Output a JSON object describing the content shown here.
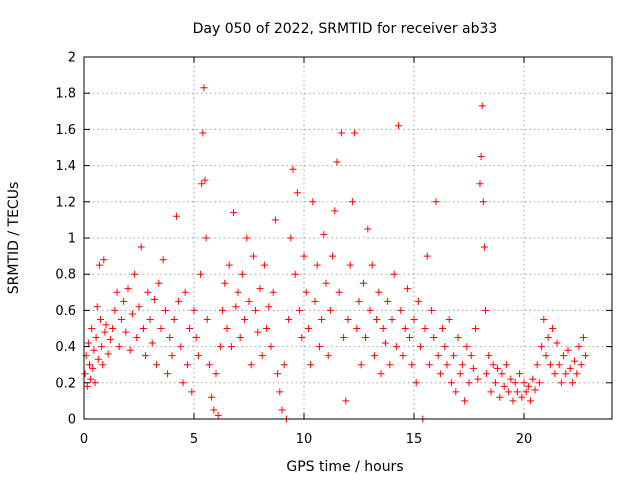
{
  "chart_data": {
    "type": "scatter",
    "title": "Day 050 of 2022, SRMTID for receiver ab33",
    "xlabel": "GPS time / hours",
    "ylabel": "SRMTID / TECUs",
    "xlim": [
      0,
      24
    ],
    "ylim": [
      0,
      2
    ],
    "xticks": [
      0,
      5,
      10,
      15,
      20
    ],
    "xtick_labels": [
      "0",
      "5",
      "10",
      "15",
      "20"
    ],
    "yticks": [
      0,
      0.2,
      0.4,
      0.6,
      0.8,
      1,
      1.2,
      1.4,
      1.6,
      1.8,
      2
    ],
    "ytick_labels": [
      "0",
      "0.2",
      "0.4",
      "0.6",
      "0.8",
      "1",
      "1.2",
      "1.4",
      "1.6",
      "1.8",
      "2"
    ],
    "grid": true,
    "marker": "+",
    "series_color": "#ff0000",
    "series": [
      {
        "name": "SRMTID",
        "points": [
          [
            0.05,
            0.25
          ],
          [
            0.1,
            0.35
          ],
          [
            0.15,
            0.18
          ],
          [
            0.2,
            0.42
          ],
          [
            0.25,
            0.3
          ],
          [
            0.3,
            0.22
          ],
          [
            0.35,
            0.5
          ],
          [
            0.4,
            0.28
          ],
          [
            0.45,
            0.38
          ],
          [
            0.5,
            0.2
          ],
          [
            0.55,
            0.45
          ],
          [
            0.6,
            0.62
          ],
          [
            0.65,
            0.33
          ],
          [
            0.7,
            0.85
          ],
          [
            0.75,
            0.55
          ],
          [
            0.8,
            0.4
          ],
          [
            0.85,
            0.3
          ],
          [
            0.9,
            0.88
          ],
          [
            0.95,
            0.48
          ],
          [
            1.0,
            0.52
          ],
          [
            1.1,
            0.36
          ],
          [
            1.2,
            0.44
          ],
          [
            1.3,
            0.5
          ],
          [
            1.4,
            0.6
          ],
          [
            1.5,
            0.7
          ],
          [
            1.6,
            0.4
          ],
          [
            1.7,
            0.55
          ],
          [
            1.8,
            0.65
          ],
          [
            1.9,
            0.48
          ],
          [
            2.0,
            0.72
          ],
          [
            2.1,
            0.38
          ],
          [
            2.2,
            0.58
          ],
          [
            2.3,
            0.8
          ],
          [
            2.4,
            0.45
          ],
          [
            2.5,
            0.62
          ],
          [
            2.6,
            0.95
          ],
          [
            2.7,
            0.5
          ],
          [
            2.8,
            0.35
          ],
          [
            2.9,
            0.7
          ],
          [
            3.0,
            0.55
          ],
          [
            3.1,
            0.42
          ],
          [
            3.2,
            0.66
          ],
          [
            3.3,
            0.3
          ],
          [
            3.4,
            0.75
          ],
          [
            3.5,
            0.5
          ],
          [
            3.6,
            0.88
          ],
          [
            3.7,
            0.6
          ],
          [
            3.8,
            0.25
          ],
          [
            3.9,
            0.45
          ],
          [
            4.0,
            0.35
          ],
          [
            4.1,
            0.55
          ],
          [
            4.2,
            1.12
          ],
          [
            4.3,
            0.65
          ],
          [
            4.4,
            0.4
          ],
          [
            4.5,
            0.2
          ],
          [
            4.6,
            0.7
          ],
          [
            4.7,
            0.3
          ],
          [
            4.8,
            0.5
          ],
          [
            4.9,
            0.15
          ],
          [
            5.0,
            0.6
          ],
          [
            5.1,
            0.45
          ],
          [
            5.2,
            0.35
          ],
          [
            5.3,
            0.8
          ],
          [
            5.35,
            1.3
          ],
          [
            5.4,
            1.58
          ],
          [
            5.45,
            1.83
          ],
          [
            5.5,
            1.32
          ],
          [
            5.55,
            1.0
          ],
          [
            5.6,
            0.55
          ],
          [
            5.7,
            0.3
          ],
          [
            5.8,
            0.12
          ],
          [
            5.9,
            0.05
          ],
          [
            6.0,
            0.25
          ],
          [
            6.1,
            0.02
          ],
          [
            6.2,
            0.4
          ],
          [
            6.3,
            0.6
          ],
          [
            6.4,
            0.75
          ],
          [
            6.5,
            0.5
          ],
          [
            6.6,
            0.85
          ],
          [
            6.7,
            0.4
          ],
          [
            6.8,
            1.14
          ],
          [
            6.9,
            0.62
          ],
          [
            7.0,
            0.7
          ],
          [
            7.1,
            0.45
          ],
          [
            7.2,
            0.8
          ],
          [
            7.3,
            0.55
          ],
          [
            7.4,
            1.0
          ],
          [
            7.5,
            0.65
          ],
          [
            7.6,
            0.3
          ],
          [
            7.7,
            0.9
          ],
          [
            7.8,
            0.6
          ],
          [
            7.9,
            0.48
          ],
          [
            8.0,
            0.72
          ],
          [
            8.1,
            0.35
          ],
          [
            8.2,
            0.85
          ],
          [
            8.3,
            0.5
          ],
          [
            8.4,
            0.62
          ],
          [
            8.5,
            0.4
          ],
          [
            8.6,
            0.7
          ],
          [
            8.7,
            1.1
          ],
          [
            8.8,
            0.25
          ],
          [
            8.9,
            0.15
          ],
          [
            9.0,
            0.05
          ],
          [
            9.1,
            0.3
          ],
          [
            9.2,
            0.0
          ],
          [
            9.3,
            0.55
          ],
          [
            9.4,
            1.0
          ],
          [
            9.5,
            1.38
          ],
          [
            9.6,
            0.8
          ],
          [
            9.7,
            1.25
          ],
          [
            9.8,
            0.6
          ],
          [
            9.9,
            0.45
          ],
          [
            10.0,
            0.9
          ],
          [
            10.1,
            0.7
          ],
          [
            10.2,
            0.5
          ],
          [
            10.3,
            0.3
          ],
          [
            10.4,
            1.2
          ],
          [
            10.5,
            0.65
          ],
          [
            10.6,
            0.85
          ],
          [
            10.7,
            0.4
          ],
          [
            10.8,
            0.55
          ],
          [
            10.9,
            1.02
          ],
          [
            11.0,
            0.75
          ],
          [
            11.1,
            0.35
          ],
          [
            11.2,
            0.6
          ],
          [
            11.3,
            0.9
          ],
          [
            11.4,
            1.15
          ],
          [
            11.5,
            1.42
          ],
          [
            11.6,
            0.7
          ],
          [
            11.7,
            1.58
          ],
          [
            11.8,
            0.45
          ],
          [
            11.9,
            0.1
          ],
          [
            12.0,
            0.55
          ],
          [
            12.1,
            0.85
          ],
          [
            12.2,
            1.2
          ],
          [
            12.3,
            1.58
          ],
          [
            12.4,
            0.5
          ],
          [
            12.5,
            0.65
          ],
          [
            12.6,
            0.3
          ],
          [
            12.7,
            0.75
          ],
          [
            12.8,
            0.45
          ],
          [
            12.9,
            1.05
          ],
          [
            13.0,
            0.6
          ],
          [
            13.1,
            0.85
          ],
          [
            13.2,
            0.35
          ],
          [
            13.3,
            0.55
          ],
          [
            13.4,
            0.7
          ],
          [
            13.5,
            0.25
          ],
          [
            13.6,
            0.5
          ],
          [
            13.7,
            0.42
          ],
          [
            13.8,
            0.65
          ],
          [
            13.9,
            0.3
          ],
          [
            14.0,
            0.55
          ],
          [
            14.1,
            0.8
          ],
          [
            14.2,
            0.4
          ],
          [
            14.3,
            1.62
          ],
          [
            14.4,
            0.6
          ],
          [
            14.5,
            0.35
          ],
          [
            14.6,
            0.5
          ],
          [
            14.7,
            0.72
          ],
          [
            14.8,
            0.45
          ],
          [
            14.9,
            0.3
          ],
          [
            15.0,
            0.55
          ],
          [
            15.1,
            0.2
          ],
          [
            15.2,
            0.65
          ],
          [
            15.3,
            0.4
          ],
          [
            15.4,
            0.0
          ],
          [
            15.5,
            0.5
          ],
          [
            15.6,
            0.9
          ],
          [
            15.7,
            0.3
          ],
          [
            15.8,
            0.6
          ],
          [
            15.9,
            0.45
          ],
          [
            16.0,
            1.2
          ],
          [
            16.1,
            0.35
          ],
          [
            16.2,
            0.25
          ],
          [
            16.3,
            0.5
          ],
          [
            16.4,
            0.4
          ],
          [
            16.5,
            0.3
          ],
          [
            16.6,
            0.55
          ],
          [
            16.7,
            0.2
          ],
          [
            16.8,
            0.35
          ],
          [
            16.9,
            0.15
          ],
          [
            17.0,
            0.45
          ],
          [
            17.1,
            0.25
          ],
          [
            17.2,
            0.3
          ],
          [
            17.3,
            0.1
          ],
          [
            17.4,
            0.4
          ],
          [
            17.5,
            0.2
          ],
          [
            17.6,
            0.35
          ],
          [
            17.7,
            0.28
          ],
          [
            17.8,
            0.5
          ],
          [
            17.9,
            0.22
          ],
          [
            18.0,
            1.3
          ],
          [
            18.05,
            1.45
          ],
          [
            18.1,
            1.73
          ],
          [
            18.15,
            1.2
          ],
          [
            18.2,
            0.95
          ],
          [
            18.25,
            0.6
          ],
          [
            18.3,
            0.25
          ],
          [
            18.4,
            0.35
          ],
          [
            18.5,
            0.15
          ],
          [
            18.6,
            0.3
          ],
          [
            18.7,
            0.2
          ],
          [
            18.8,
            0.28
          ],
          [
            18.9,
            0.12
          ],
          [
            19.0,
            0.25
          ],
          [
            19.1,
            0.18
          ],
          [
            19.2,
            0.3
          ],
          [
            19.3,
            0.15
          ],
          [
            19.4,
            0.22
          ],
          [
            19.5,
            0.1
          ],
          [
            19.6,
            0.2
          ],
          [
            19.7,
            0.15
          ],
          [
            19.8,
            0.25
          ],
          [
            19.9,
            0.12
          ],
          [
            20.0,
            0.2
          ],
          [
            20.1,
            0.15
          ],
          [
            20.2,
            0.18
          ],
          [
            20.3,
            0.1
          ],
          [
            20.4,
            0.22
          ],
          [
            20.5,
            0.16
          ],
          [
            20.6,
            0.3
          ],
          [
            20.7,
            0.2
          ],
          [
            20.8,
            0.4
          ],
          [
            20.9,
            0.55
          ],
          [
            21.0,
            0.35
          ],
          [
            21.1,
            0.45
          ],
          [
            21.2,
            0.3
          ],
          [
            21.3,
            0.5
          ],
          [
            21.4,
            0.25
          ],
          [
            21.5,
            0.42
          ],
          [
            21.6,
            0.3
          ],
          [
            21.7,
            0.2
          ],
          [
            21.8,
            0.35
          ],
          [
            21.9,
            0.25
          ],
          [
            22.0,
            0.38
          ],
          [
            22.1,
            0.28
          ],
          [
            22.2,
            0.2
          ],
          [
            22.3,
            0.32
          ],
          [
            22.4,
            0.25
          ],
          [
            22.5,
            0.4
          ],
          [
            22.6,
            0.3
          ],
          [
            22.7,
            0.45
          ],
          [
            22.8,
            0.35
          ]
        ]
      }
    ]
  }
}
